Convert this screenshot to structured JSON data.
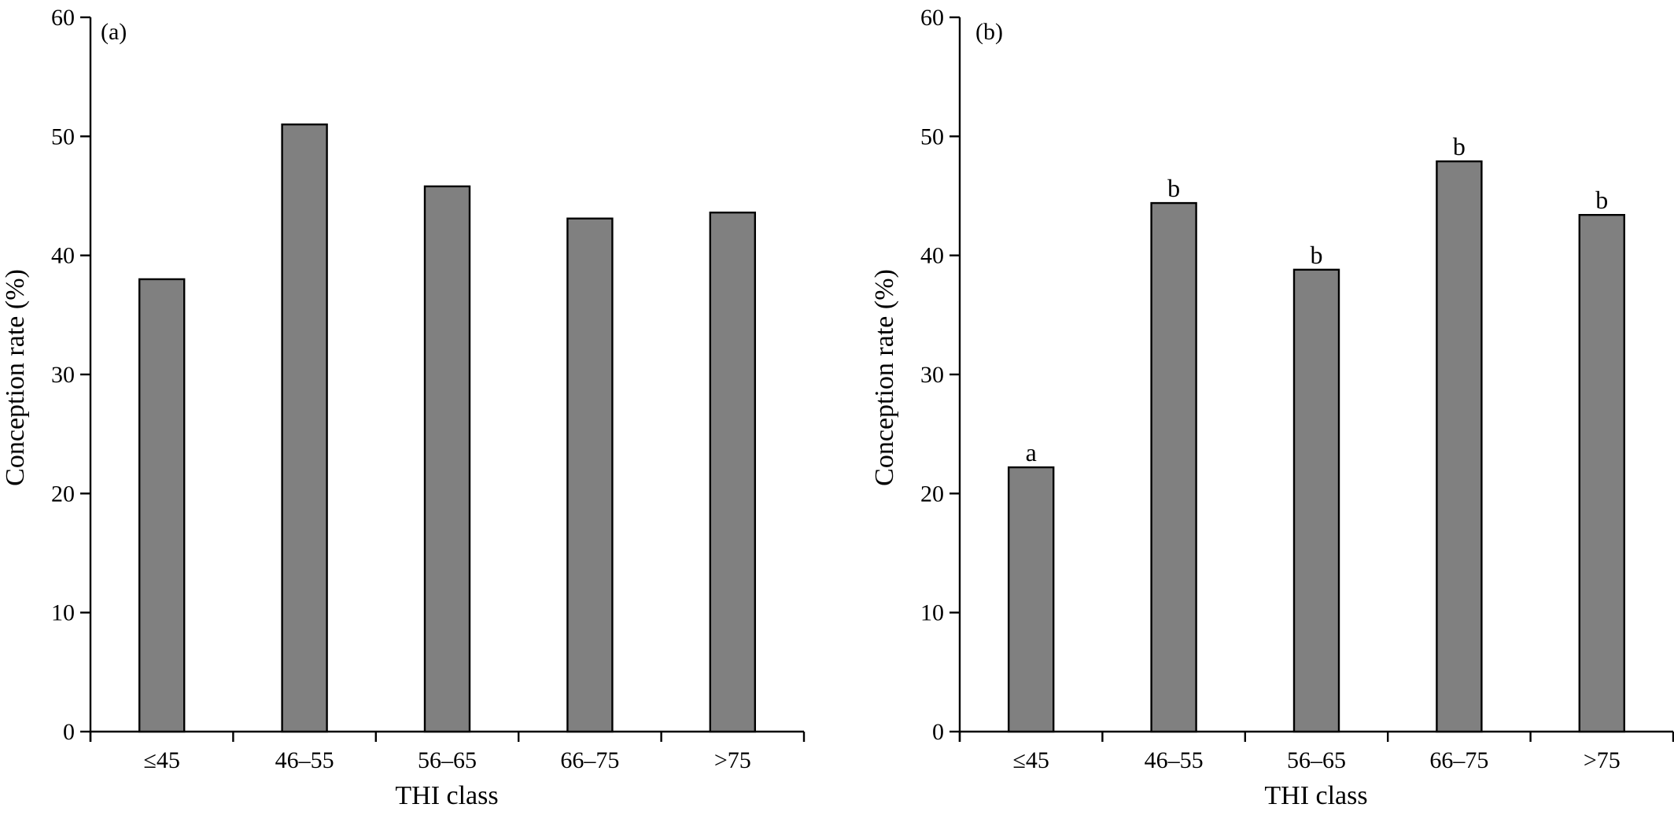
{
  "figure": {
    "background": "#ffffff"
  },
  "chart_data": [
    {
      "type": "bar",
      "panel_label": "(a)",
      "categories": [
        "≤45",
        "46–55",
        "56–65",
        "66–75",
        ">75"
      ],
      "values": [
        38.0,
        51.0,
        45.8,
        43.1,
        43.6
      ],
      "annotations": [],
      "xlabel": "THI class",
      "ylabel": "Conception rate (%)",
      "ylim": [
        0,
        60
      ],
      "yticks": [
        0,
        10,
        20,
        30,
        40,
        50,
        60
      ],
      "grid": false,
      "legend": "none",
      "bar_color": "#808080"
    },
    {
      "type": "bar",
      "panel_label": "(b)",
      "categories": [
        "≤45",
        "46–55",
        "56–65",
        "66–75",
        ">75"
      ],
      "values": [
        22.2,
        44.4,
        38.8,
        47.9,
        43.4
      ],
      "annotations": [
        "a",
        "b",
        "b",
        "b",
        "b"
      ],
      "xlabel": "THI class",
      "ylabel": "Conception rate (%)",
      "ylim": [
        0,
        60
      ],
      "yticks": [
        0,
        10,
        20,
        30,
        40,
        50,
        60
      ],
      "grid": false,
      "legend": "none",
      "bar_color": "#808080"
    }
  ]
}
